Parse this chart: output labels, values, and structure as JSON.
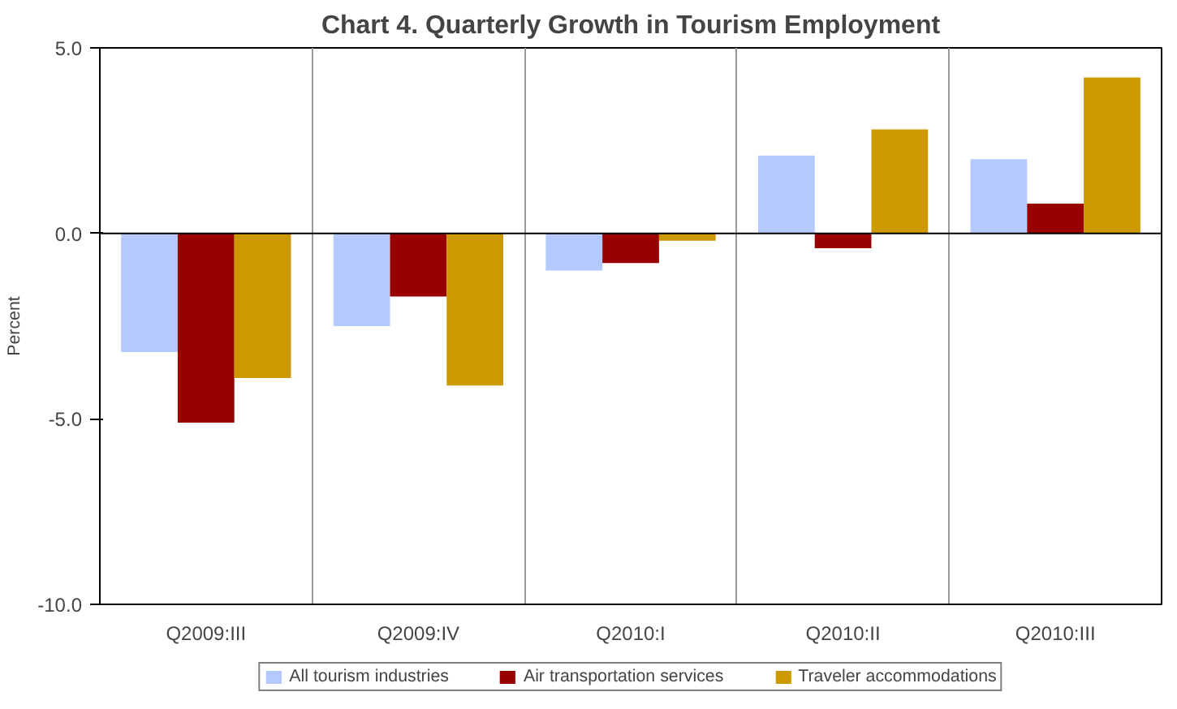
{
  "chart_data": {
    "type": "bar",
    "title": "Chart 4. Quarterly Growth in Tourism Employment",
    "ylabel": "Percent",
    "categories": [
      "Q2009:III",
      "Q2009:IV",
      "Q2010:I",
      "Q2010:II",
      "Q2010:III"
    ],
    "series": [
      {
        "name": "All tourism industries",
        "color": "#b3c9ff",
        "values": [
          -3.2,
          -2.5,
          -1.0,
          2.1,
          2.0
        ]
      },
      {
        "name": "Air transportation services",
        "color": "#990000",
        "values": [
          -5.1,
          -1.7,
          -0.8,
          -0.4,
          0.8
        ]
      },
      {
        "name": "Traveler accommodations",
        "color": "#cc9900",
        "values": [
          -3.9,
          -4.1,
          -0.2,
          2.8,
          4.2
        ]
      }
    ],
    "ylim": [
      -10,
      5
    ],
    "yticks": [
      {
        "value": -10,
        "label": "-10.0"
      },
      {
        "value": -5,
        "label": "-5.0"
      },
      {
        "value": 0,
        "label": "0.0"
      },
      {
        "value": 5,
        "label": "5.0"
      }
    ],
    "grid": "x",
    "legend": "bottom"
  }
}
